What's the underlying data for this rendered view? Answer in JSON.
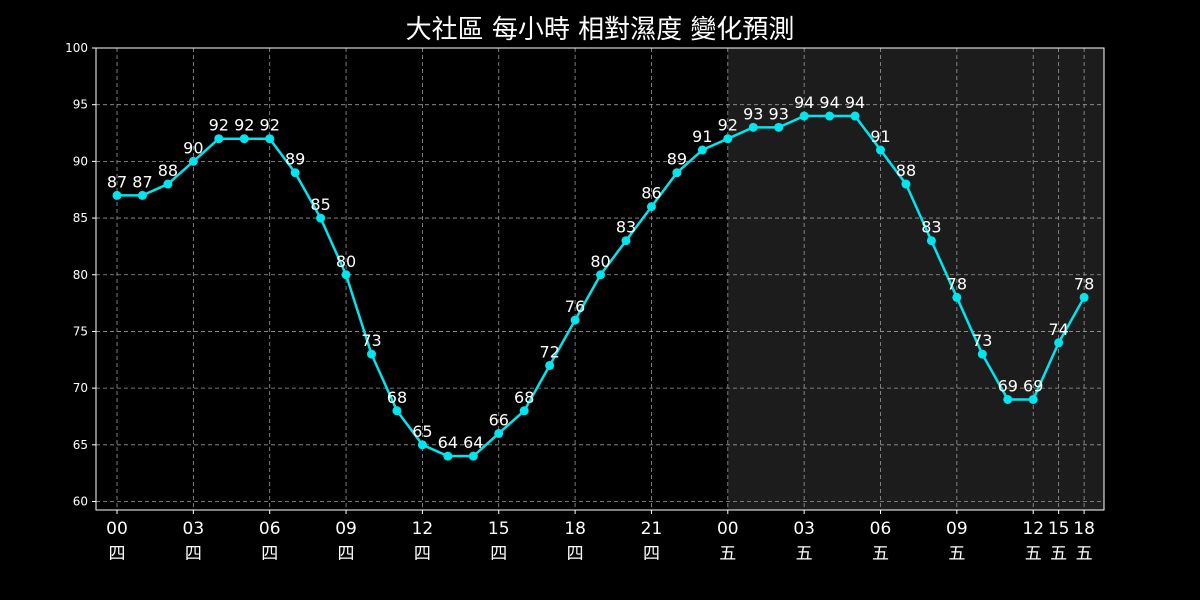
{
  "chart_data": {
    "type": "line",
    "title": "大社區 每小時 相對濕度 變化預測",
    "xlabel": "",
    "ylabel": "",
    "ylim": [
      60,
      100
    ],
    "yticks": [
      60,
      65,
      70,
      75,
      80,
      85,
      90,
      95,
      100
    ],
    "grid": true,
    "shaded_from_index": 24,
    "x_tick_labels": [
      {
        "index": 0,
        "hour": "00",
        "day": "四"
      },
      {
        "index": 3,
        "hour": "03",
        "day": "四"
      },
      {
        "index": 6,
        "hour": "06",
        "day": "四"
      },
      {
        "index": 9,
        "hour": "09",
        "day": "四"
      },
      {
        "index": 12,
        "hour": "12",
        "day": "四"
      },
      {
        "index": 15,
        "hour": "15",
        "day": "四"
      },
      {
        "index": 18,
        "hour": "18",
        "day": "四"
      },
      {
        "index": 21,
        "hour": "21",
        "day": "四"
      },
      {
        "index": 24,
        "hour": "00",
        "day": "五"
      },
      {
        "index": 27,
        "hour": "03",
        "day": "五"
      },
      {
        "index": 30,
        "hour": "06",
        "day": "五"
      },
      {
        "index": 33,
        "hour": "09",
        "day": "五"
      },
      {
        "index": 36,
        "hour": "12",
        "day": "五"
      },
      {
        "index": 37,
        "hour": "15",
        "day": "五"
      },
      {
        "index": 38,
        "hour": "18",
        "day": "五"
      }
    ],
    "series": [
      {
        "color": "#00e5ee",
        "values": [
          87,
          87,
          88,
          90,
          92,
          92,
          92,
          89,
          85,
          80,
          73,
          68,
          65,
          64,
          64,
          66,
          68,
          72,
          76,
          80,
          83,
          86,
          89,
          91,
          92,
          93,
          93,
          94,
          94,
          94,
          91,
          88,
          83,
          78,
          73,
          69,
          69,
          74,
          78
        ]
      }
    ],
    "colors": {
      "background": "#000000",
      "shade": "#1c1c1c",
      "line": "#00e5ee",
      "text": "#ffffff",
      "grid": "#9a9a9a"
    }
  }
}
